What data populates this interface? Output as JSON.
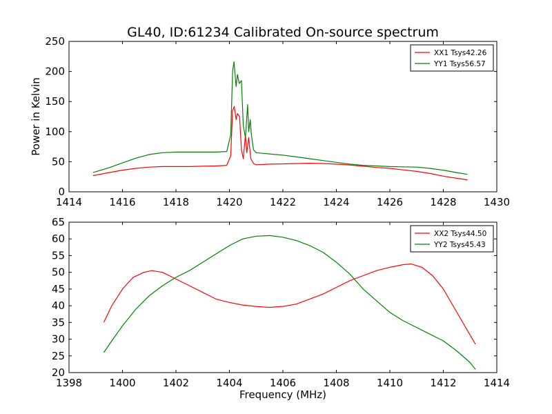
{
  "figure": {
    "title": "GL40, ID:61234 Calibrated On-source spectrum"
  },
  "chart_data": [
    {
      "type": "line",
      "title": "GL40, ID:61234 Calibrated On-source spectrum",
      "xlabel": "",
      "ylabel": "Power in Kelvin",
      "xlim": [
        1414,
        1430
      ],
      "ylim": [
        0,
        250
      ],
      "xticks": [
        1414,
        1416,
        1418,
        1420,
        1422,
        1424,
        1426,
        1428,
        1430
      ],
      "yticks": [
        0,
        50,
        100,
        150,
        200,
        250
      ],
      "grid": false,
      "legend_position": "top-right",
      "series": [
        {
          "name": "XX1 Tsys42.26",
          "color": "#ff0000",
          "x": [
            1414.9,
            1415.5,
            1416.0,
            1416.5,
            1417.0,
            1417.5,
            1418.0,
            1418.5,
            1419.0,
            1419.5,
            1419.9,
            1420.05,
            1420.12,
            1420.18,
            1420.25,
            1420.3,
            1420.38,
            1420.45,
            1420.52,
            1420.6,
            1420.65,
            1420.72,
            1420.8,
            1420.9,
            1421.0,
            1421.5,
            1422.0,
            1422.5,
            1423.0,
            1423.5,
            1424.0,
            1424.5,
            1425.0,
            1425.5,
            1426.0,
            1426.5,
            1427.0,
            1427.5,
            1428.0,
            1428.5,
            1428.9
          ],
          "y": [
            27,
            32,
            36,
            39,
            41,
            42,
            42,
            42,
            42.5,
            43,
            44,
            60,
            135,
            142,
            120,
            130,
            125,
            70,
            55,
            95,
            65,
            90,
            55,
            47,
            45,
            46,
            46.5,
            47,
            47.5,
            47,
            46,
            44.5,
            42.5,
            40.5,
            39,
            36.5,
            34,
            30.5,
            26,
            22.5,
            20
          ]
        },
        {
          "name": "YY1 Tsys56.57",
          "color": "#008000",
          "x": [
            1414.9,
            1415.5,
            1416.0,
            1416.5,
            1417.0,
            1417.5,
            1418.0,
            1418.5,
            1419.0,
            1419.5,
            1419.9,
            1420.05,
            1420.12,
            1420.17,
            1420.25,
            1420.3,
            1420.37,
            1420.45,
            1420.52,
            1420.6,
            1420.68,
            1420.72,
            1420.78,
            1420.82,
            1420.9,
            1421.0,
            1421.5,
            1422.0,
            1422.5,
            1423.0,
            1423.5,
            1424.0,
            1424.5,
            1425.0,
            1425.5,
            1426.0,
            1426.5,
            1427.0,
            1427.5,
            1428.0,
            1428.5,
            1428.9
          ],
          "y": [
            32,
            40,
            48,
            56,
            62,
            65,
            66,
            66,
            66,
            66,
            67,
            95,
            200,
            216,
            175,
            195,
            180,
            185,
            110,
            90,
            145,
            100,
            120,
            95,
            70,
            65,
            63,
            61,
            58,
            55,
            52,
            49,
            46,
            44,
            43,
            42,
            41.5,
            41,
            39,
            36,
            32,
            29
          ]
        }
      ]
    },
    {
      "type": "line",
      "title": "",
      "xlabel": "Frequency (MHz)",
      "ylabel": "",
      "xlim": [
        1398,
        1414
      ],
      "ylim": [
        20,
        65
      ],
      "xticks": [
        1398,
        1400,
        1402,
        1404,
        1406,
        1408,
        1410,
        1412,
        1414
      ],
      "yticks": [
        20,
        25,
        30,
        35,
        40,
        45,
        50,
        55,
        60,
        65
      ],
      "grid": false,
      "legend_position": "top-right",
      "series": [
        {
          "name": "XX2 Tsys44.50",
          "color": "#ff0000",
          "x": [
            1399.3,
            1399.6,
            1400.0,
            1400.4,
            1400.8,
            1401.1,
            1401.5,
            1402.0,
            1402.5,
            1403.0,
            1403.5,
            1404.0,
            1404.5,
            1405.0,
            1405.5,
            1406.0,
            1406.5,
            1407.0,
            1407.5,
            1408.0,
            1408.5,
            1409.0,
            1409.5,
            1410.0,
            1410.5,
            1410.8,
            1411.2,
            1411.6,
            1412.0,
            1412.4,
            1412.8,
            1413.2
          ],
          "y": [
            35,
            40,
            45,
            48.5,
            50,
            50.5,
            50,
            48,
            46,
            44,
            42,
            41,
            40.2,
            39.8,
            39.5,
            39.8,
            40.5,
            42,
            43.5,
            45.5,
            47.5,
            49,
            50.5,
            51.5,
            52.3,
            52.5,
            51.5,
            49,
            45,
            39.5,
            34,
            28.5
          ]
        },
        {
          "name": "YY2 Tsys45.43",
          "color": "#008000",
          "x": [
            1399.3,
            1399.6,
            1400.0,
            1400.5,
            1401.0,
            1401.5,
            1402.0,
            1402.5,
            1403.0,
            1403.5,
            1404.0,
            1404.5,
            1405.0,
            1405.5,
            1406.0,
            1406.5,
            1407.0,
            1407.5,
            1408.0,
            1408.5,
            1409.0,
            1409.5,
            1410.0,
            1410.5,
            1411.0,
            1411.5,
            1412.0,
            1412.5,
            1413.0,
            1413.2
          ],
          "y": [
            26,
            29.5,
            34,
            39,
            43,
            46,
            48.5,
            50.5,
            53,
            55.5,
            58,
            60,
            60.8,
            61,
            60.5,
            59.5,
            58,
            56,
            53,
            49.5,
            45,
            41.5,
            38,
            35.5,
            33.5,
            31.5,
            29.5,
            26.5,
            23,
            21
          ]
        }
      ]
    }
  ]
}
